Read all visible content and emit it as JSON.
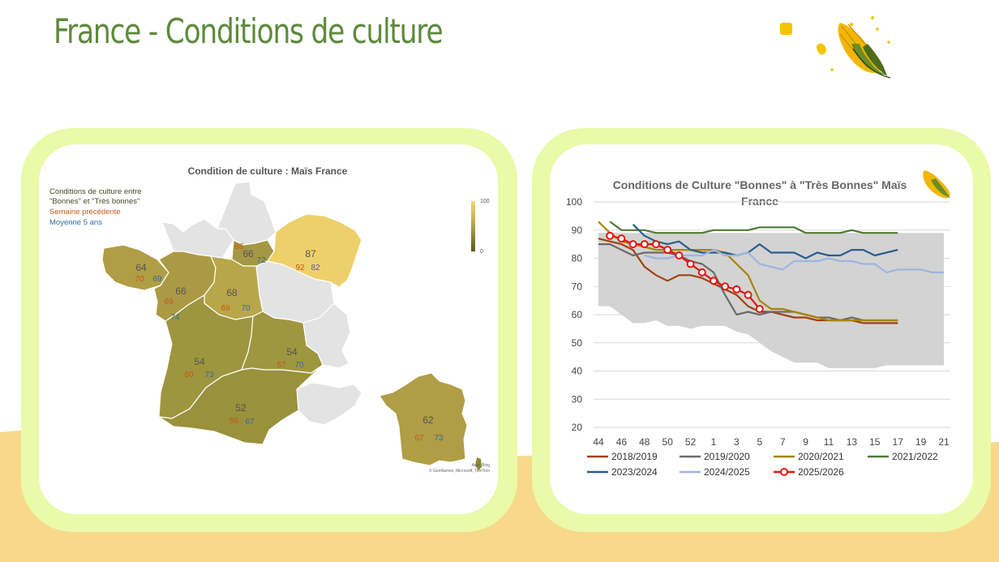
{
  "page": {
    "title": "France - Conditions de culture",
    "colors": {
      "title": "#5c8a3c",
      "card_frame": "#eafaa9",
      "band": "#f8d98b"
    }
  },
  "map": {
    "title": "Condition de culture : Maïs France",
    "legend": {
      "line1": "Conditions de culture entre",
      "line2": "\"Bonnes\" et \"Très bonnes\"",
      "line3": "Semaine précédente",
      "line4": "Moyenne 5 ans"
    },
    "scale": {
      "max": "100",
      "min": "0"
    },
    "attribution": {
      "line1": "Avec Bing",
      "line2": "© GeoNames, Microsoft, TomTom"
    },
    "regions": [
      {
        "id": "bretagne",
        "current": "64",
        "previous": "70",
        "avg5": "69"
      },
      {
        "id": "pays-de-la-loire",
        "current": "66",
        "previous": "69",
        "avg5": ""
      },
      {
        "id": "poitou",
        "current": "",
        "previous": "",
        "avg5": "74"
      },
      {
        "id": "centre",
        "current": "68",
        "previous": "69",
        "avg5": "70"
      },
      {
        "id": "ile-de-france",
        "current": "66",
        "previous": "66",
        "avg5": "72"
      },
      {
        "id": "grand-est",
        "current": "87",
        "previous": "92",
        "avg5": "82"
      },
      {
        "id": "nouvelle-aquitaine",
        "current": "54",
        "previous": "60",
        "avg5": "73"
      },
      {
        "id": "auvergne",
        "current": "54",
        "previous": "57",
        "avg5": "70"
      },
      {
        "id": "occitanie",
        "current": "52",
        "previous": "59",
        "avg5": "67"
      },
      {
        "id": "france-total",
        "current": "62",
        "previous": "67",
        "avg5": "73"
      }
    ]
  },
  "chart_data": {
    "type": "line",
    "title": "Conditions de Culture \"Bonnes\" à \"Très Bonnes\" Maïs France",
    "title_line1": "Conditions de Culture \"Bonnes\" à \"Très Bonnes\" Maïs",
    "title_line2": "France",
    "xlabel": "",
    "ylabel": "",
    "ylim": [
      20,
      100
    ],
    "yticks": [
      "20",
      "30",
      "40",
      "50",
      "60",
      "70",
      "80",
      "90",
      "100"
    ],
    "x": [
      "44",
      "45",
      "46",
      "47",
      "48",
      "49",
      "50",
      "51",
      "52",
      "53",
      "1",
      "2",
      "3",
      "4",
      "5",
      "6",
      "7",
      "8",
      "9",
      "10",
      "11",
      "12",
      "13",
      "14",
      "15",
      "16",
      "17",
      "18",
      "19",
      "20",
      "21"
    ],
    "xtick_labels": [
      "44",
      "46",
      "48",
      "50",
      "52",
      "1",
      "3",
      "5",
      "7",
      "9",
      "11",
      "13",
      "15",
      "17",
      "19",
      "21"
    ],
    "grid": "horizontal",
    "legend_position": "bottom",
    "range_band": {
      "color": "#d3d3d3",
      "upper": [
        89,
        89,
        89,
        89,
        89,
        89,
        89,
        89,
        89,
        89,
        89,
        89,
        89,
        89,
        89,
        89,
        89,
        89,
        89,
        89,
        89,
        89,
        89,
        89,
        89,
        89,
        89,
        89,
        89,
        89,
        89
      ],
      "lower": [
        63,
        63,
        60,
        57,
        57,
        58,
        56,
        56,
        55,
        56,
        56,
        56,
        54,
        53,
        50,
        47,
        45,
        43,
        43,
        43,
        41,
        41,
        41,
        41,
        41,
        42,
        42,
        42,
        42,
        42,
        42
      ]
    },
    "series": [
      {
        "name": "2018/2019",
        "color": "#a0420f",
        "marker": false,
        "values": [
          87,
          86,
          85,
          83,
          77,
          74,
          72,
          74,
          74,
          73,
          71,
          69,
          67,
          63,
          61,
          61,
          60,
          59,
          59,
          58,
          58,
          58,
          58,
          57,
          57,
          57,
          57,
          null,
          null,
          null,
          null
        ]
      },
      {
        "name": "2019/2020",
        "color": "#6b6b6b",
        "marker": false,
        "values": [
          85,
          85,
          83,
          81,
          82,
          82,
          82,
          81,
          79,
          78,
          75,
          67,
          60,
          61,
          60,
          61,
          61,
          61,
          60,
          59,
          59,
          58,
          59,
          58,
          58,
          58,
          58,
          null,
          null,
          null,
          null
        ]
      },
      {
        "name": "2020/2021",
        "color": "#a78408",
        "marker": false,
        "values": [
          93,
          89,
          86,
          85,
          84,
          83,
          83,
          83,
          83,
          83,
          83,
          82,
          78,
          74,
          65,
          62,
          62,
          61,
          60,
          59,
          58,
          58,
          58,
          58,
          58,
          58,
          58,
          null,
          null,
          null,
          null
        ]
      },
      {
        "name": "2021/2022",
        "color": "#4e7a35",
        "marker": false,
        "values": [
          null,
          93,
          90,
          90,
          90,
          89,
          89,
          89,
          89,
          89,
          90,
          90,
          90,
          90,
          91,
          91,
          91,
          91,
          89,
          89,
          89,
          89,
          90,
          89,
          89,
          89,
          89,
          null,
          null,
          null,
          null
        ]
      },
      {
        "name": "2023/2024",
        "color": "#2b5d8f",
        "marker": false,
        "values": [
          null,
          null,
          null,
          92,
          88,
          86,
          85,
          86,
          83,
          82,
          82,
          82,
          81,
          82,
          85,
          82,
          82,
          82,
          80,
          82,
          81,
          81,
          83,
          83,
          81,
          82,
          83,
          null,
          null,
          null,
          null
        ]
      },
      {
        "name": "2024/2025",
        "color": "#9db6e0",
        "marker": false,
        "values": [
          null,
          null,
          null,
          null,
          81,
          80,
          80,
          81,
          81,
          81,
          83,
          81,
          81,
          82,
          78,
          77,
          76,
          79,
          79,
          79,
          80,
          79,
          79,
          78,
          78,
          75,
          76,
          76,
          76,
          75,
          75
        ]
      },
      {
        "name": "2025/2026",
        "color": "#e8130f",
        "marker": true,
        "values": [
          null,
          88,
          87,
          85,
          85,
          85,
          83,
          81,
          78,
          75,
          72,
          70,
          69,
          67,
          62,
          null,
          null,
          null,
          null,
          null,
          null,
          null,
          null,
          null,
          null,
          null,
          null,
          null,
          null,
          null,
          null
        ]
      }
    ]
  }
}
